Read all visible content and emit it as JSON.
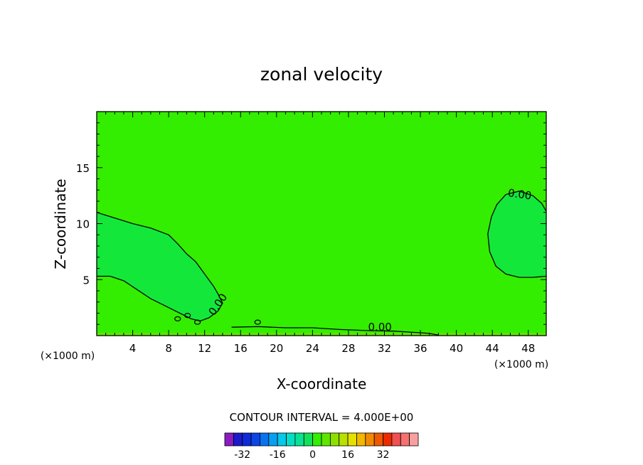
{
  "chart_data": {
    "type": "contour",
    "title": "zonal velocity",
    "xlabel": "X-coordinate",
    "ylabel": "Z-coordinate",
    "x_units": "(×1000 m)",
    "y_units": "(×1000 m)",
    "xlim": [
      0,
      50
    ],
    "ylim": [
      0,
      20
    ],
    "x_ticks": [
      4,
      8,
      12,
      16,
      20,
      24,
      28,
      32,
      36,
      40,
      44,
      48
    ],
    "y_ticks": [
      5,
      10,
      15
    ],
    "fill_color": "#33ee00",
    "contour_interval_text": "CONTOUR INTERVAL = 4.000E+00",
    "contour_levels": [
      {
        "label": "0.00",
        "region": "left low-level region",
        "x": [
          0,
          2,
          4,
          6,
          8,
          9,
          10,
          11,
          12,
          13,
          13.5,
          14,
          13.5,
          12.5,
          11.5,
          10.5,
          9.5,
          8.5,
          7.5,
          6,
          4.5,
          3,
          1.5,
          0
        ],
        "y": [
          11,
          10.5,
          10,
          9.6,
          9.0,
          8.2,
          7.3,
          6.6,
          5.5,
          4.4,
          3.7,
          2.9,
          2.2,
          1.6,
          1.3,
          1.5,
          1.9,
          2.3,
          2.7,
          3.3,
          4.1,
          4.9,
          5.3,
          5.3
        ]
      },
      {
        "label": "0.00",
        "region": "right mid-level region",
        "x": [
          50,
          49.5,
          48.5,
          47,
          45.5,
          44.5,
          43.9,
          43.5,
          43.7,
          44.4,
          45.5,
          47,
          48.5,
          50
        ],
        "y": [
          11.1,
          11.8,
          12.5,
          12.9,
          12.6,
          11.7,
          10.6,
          9.1,
          7.5,
          6.2,
          5.5,
          5.2,
          5.2,
          5.3
        ]
      },
      {
        "label": "0.00",
        "region": "near-surface layer",
        "x": [
          15,
          18,
          21,
          24,
          27,
          30,
          33,
          35,
          37,
          38
        ],
        "y": [
          0.75,
          0.8,
          0.7,
          0.7,
          0.55,
          0.45,
          0.4,
          0.3,
          0.2,
          0.05
        ]
      }
    ],
    "colorbar": {
      "colors": [
        "#8a1cc0",
        "#1d1ac9",
        "#0f2ad9",
        "#0a45e6",
        "#0872ef",
        "#07a0f0",
        "#06c8e8",
        "#06ddc5",
        "#06e394",
        "#12e05a",
        "#33ee00",
        "#5ee600",
        "#8ce000",
        "#b8e000",
        "#e4e000",
        "#f2b800",
        "#f28a00",
        "#ee5800",
        "#ec2a00",
        "#f05050",
        "#f57070",
        "#f7a0a0"
      ],
      "tick_labels": [
        "-32",
        "-16",
        "0",
        "16",
        "32"
      ],
      "tick_values": [
        -32,
        -16,
        0,
        16,
        32
      ]
    }
  }
}
